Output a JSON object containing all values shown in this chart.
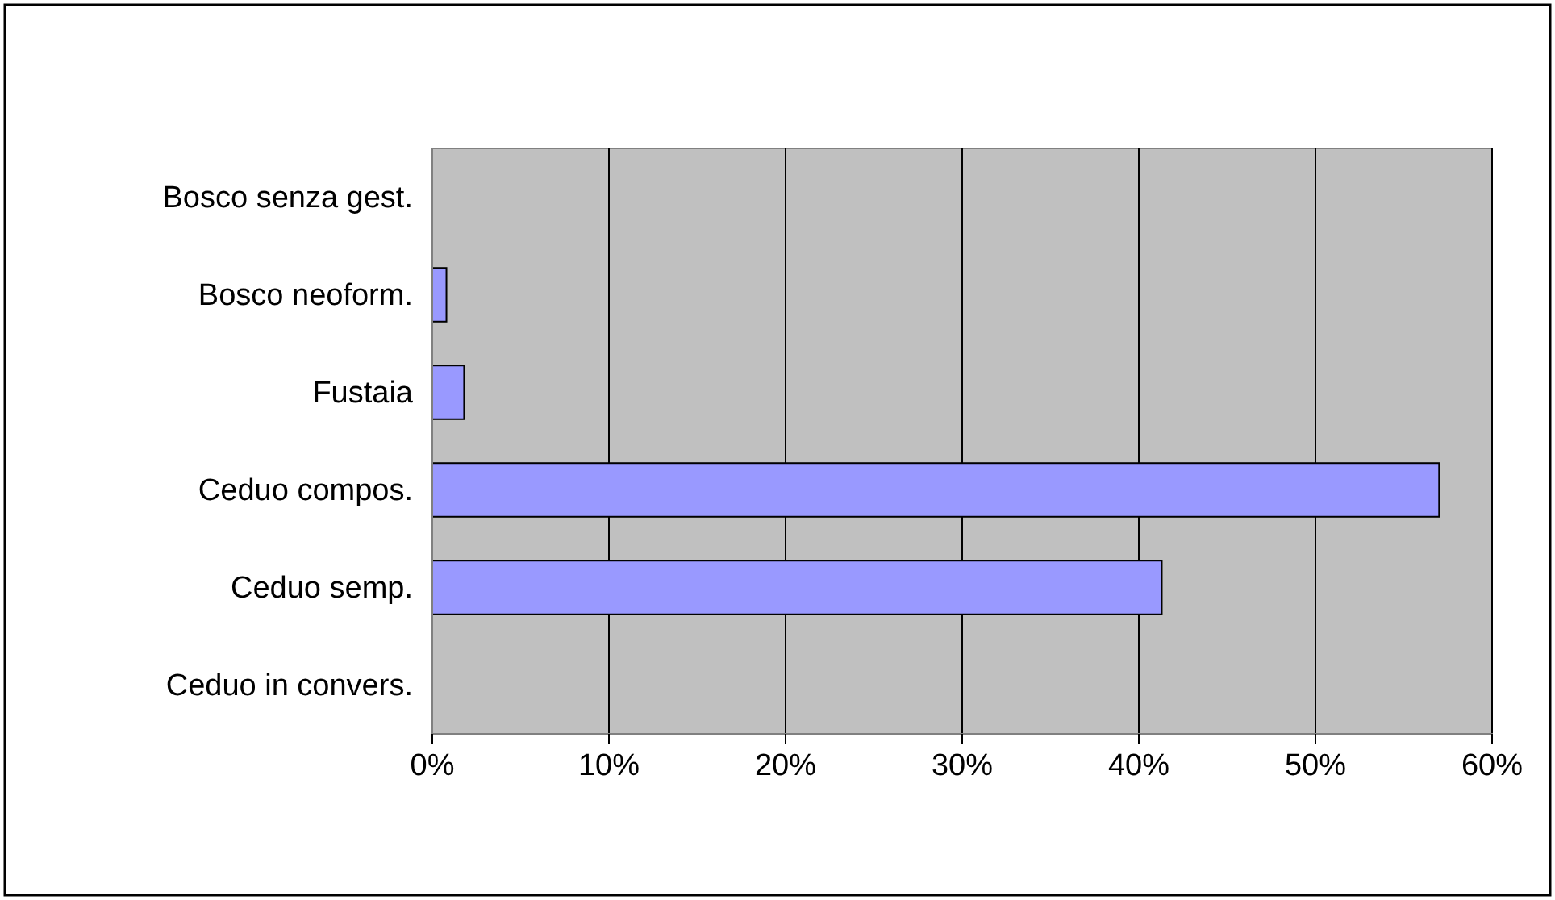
{
  "chart_data": {
    "type": "bar",
    "orientation": "horizontal",
    "categories": [
      "Bosco senza gest.",
      "Bosco neoform.",
      "Fustaia",
      "Ceduo compos.",
      "Ceduo semp.",
      "Ceduo in convers."
    ],
    "values": [
      0,
      0.8,
      1.8,
      57,
      41.3,
      0
    ],
    "color": "#9999ff",
    "xlim": [
      0,
      60
    ],
    "xticks": [
      {
        "value": 0,
        "label": "0%"
      },
      {
        "value": 10,
        "label": "10%"
      },
      {
        "value": 20,
        "label": "20%"
      },
      {
        "value": 30,
        "label": "30%"
      },
      {
        "value": 40,
        "label": "40%"
      },
      {
        "value": 50,
        "label": "50%"
      },
      {
        "value": 60,
        "label": "60%"
      }
    ],
    "grid": "x"
  }
}
